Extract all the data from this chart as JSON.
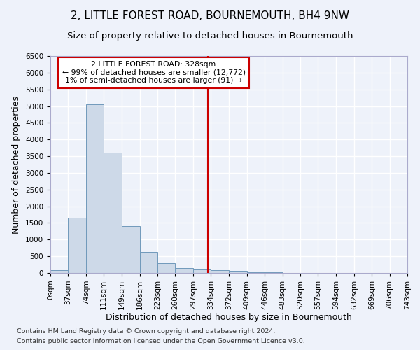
{
  "title": "2, LITTLE FOREST ROAD, BOURNEMOUTH, BH4 9NW",
  "subtitle": "Size of property relative to detached houses in Bournemouth",
  "xlabel": "Distribution of detached houses by size in Bournemouth",
  "ylabel": "Number of detached properties",
  "footnote1": "Contains HM Land Registry data © Crown copyright and database right 2024.",
  "footnote2": "Contains public sector information licensed under the Open Government Licence v3.0.",
  "bin_edges": [
    0,
    37,
    74,
    111,
    149,
    186,
    223,
    260,
    297,
    334,
    372,
    409,
    446,
    483,
    520,
    557,
    594,
    632,
    669,
    706,
    743
  ],
  "bin_labels": [
    "0sqm",
    "37sqm",
    "74sqm",
    "111sqm",
    "149sqm",
    "186sqm",
    "223sqm",
    "260sqm",
    "297sqm",
    "334sqm",
    "372sqm",
    "409sqm",
    "446sqm",
    "483sqm",
    "520sqm",
    "557sqm",
    "594sqm",
    "632sqm",
    "669sqm",
    "706sqm",
    "743sqm"
  ],
  "bar_heights": [
    75,
    1650,
    5060,
    3600,
    1410,
    620,
    295,
    155,
    110,
    75,
    55,
    30,
    20,
    10,
    5,
    3,
    2,
    1,
    1,
    1
  ],
  "bar_color": "#cdd9e8",
  "bar_edge_color": "#7099bb",
  "vline_x": 328,
  "vline_color": "#cc0000",
  "annotation_text": "2 LITTLE FOREST ROAD: 328sqm\n← 99% of detached houses are smaller (12,772)\n1% of semi-detached houses are larger (91) →",
  "annotation_box_color": "#ffffff",
  "annotation_box_edge": "#cc0000",
  "ylim": [
    0,
    6500
  ],
  "yticks": [
    0,
    500,
    1000,
    1500,
    2000,
    2500,
    3000,
    3500,
    4000,
    4500,
    5000,
    5500,
    6000,
    6500
  ],
  "background_color": "#eef2fa",
  "grid_color": "#ffffff",
  "title_fontsize": 11,
  "subtitle_fontsize": 9.5,
  "axis_label_fontsize": 9,
  "tick_fontsize": 7.5,
  "footnote_fontsize": 6.8
}
